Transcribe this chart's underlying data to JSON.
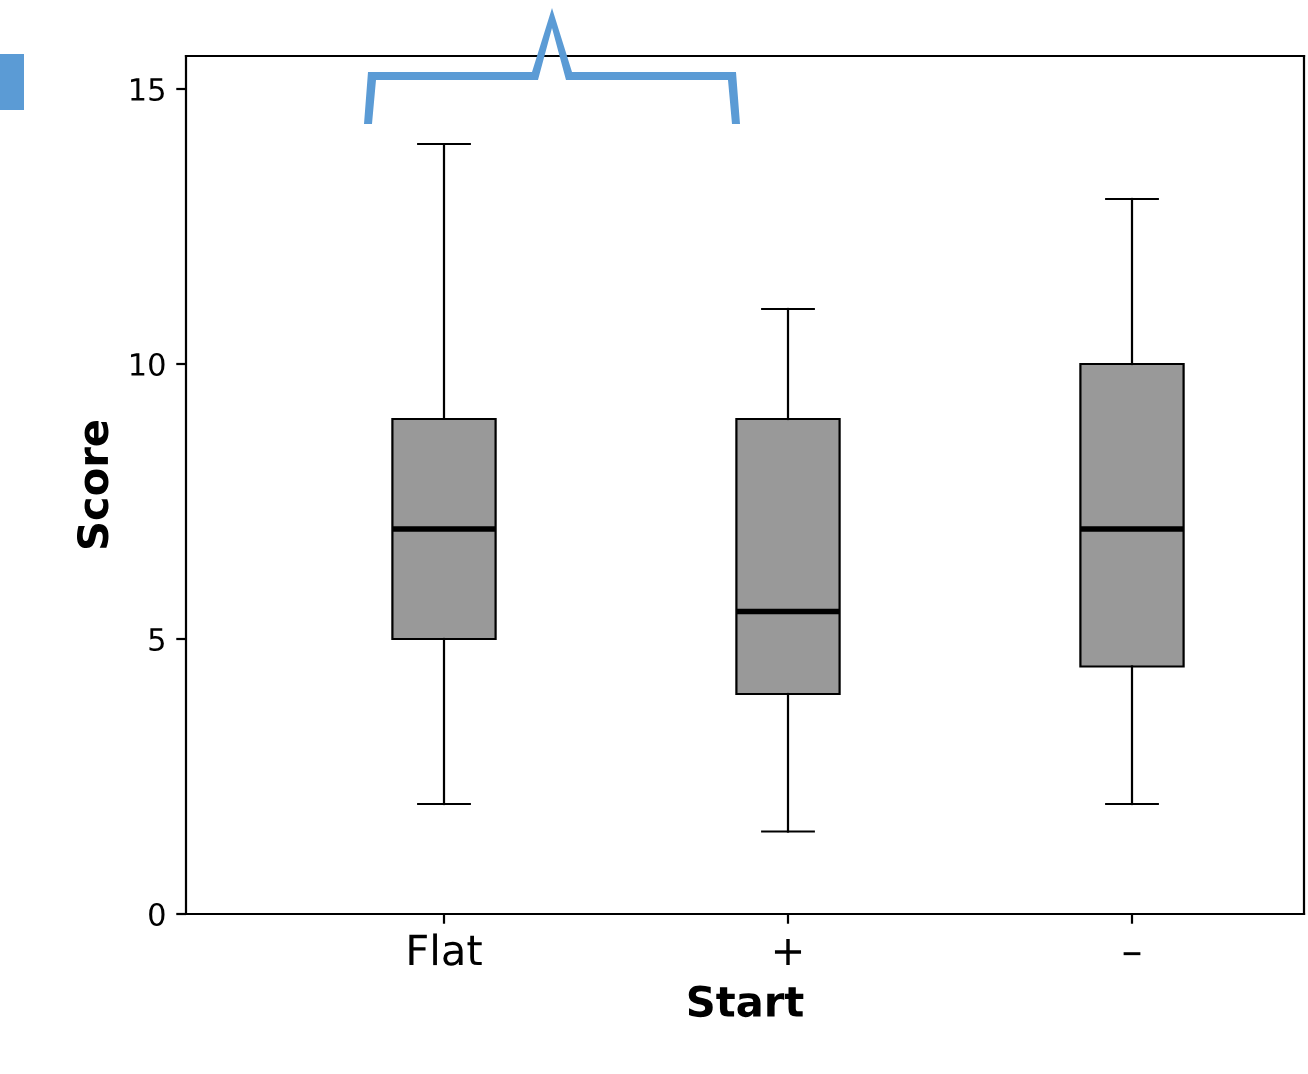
{
  "chart_data": {
    "type": "box",
    "xlabel": "Start",
    "ylabel": "Score",
    "categories": [
      "Flat",
      "+",
      "–"
    ],
    "boxes": [
      {
        "low": 2,
        "q1": 5,
        "median": 7,
        "q3": 9,
        "high": 14
      },
      {
        "low": 1.5,
        "q1": 4,
        "median": 5.5,
        "q3": 9,
        "high": 11
      },
      {
        "low": 2,
        "q1": 4.5,
        "median": 7,
        "q3": 10,
        "high": 13
      }
    ],
    "color": "#999999",
    "ylim": [
      0,
      15.6
    ],
    "yticks": [
      0,
      5,
      10,
      15
    ],
    "grid": false
  }
}
